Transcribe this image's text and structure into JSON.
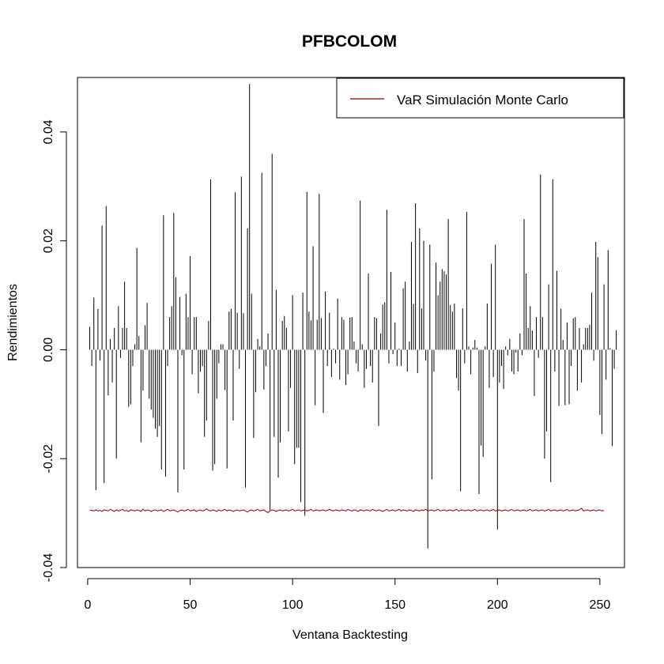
{
  "chart_data": {
    "type": "line",
    "title": "PFBCOLOM",
    "xlabel": "Ventana Backtesting",
    "ylabel": "Rendimientos",
    "xlim": [
      -5,
      262
    ],
    "ylim": [
      -0.04,
      0.05
    ],
    "x_ticks": [
      0,
      50,
      100,
      150,
      200,
      250
    ],
    "x_tick_labels": [
      "0",
      "50",
      "100",
      "150",
      "200",
      "250"
    ],
    "y_ticks": [
      -0.04,
      -0.02,
      0.0,
      0.02,
      0.04
    ],
    "y_tick_labels": [
      "-0.04",
      "-0.02",
      "0.00",
      "0.02",
      "0.04"
    ],
    "grid": false,
    "legend": {
      "position": "top-right",
      "entries": [
        {
          "label": "VaR Simulación Monte Carlo",
          "color": "#8b0000"
        }
      ]
    },
    "colors": {
      "returns": "#000000",
      "var": "#8b0000"
    },
    "series": [
      {
        "type": "histogram-lines",
        "x_start": 1,
        "values": [
          0.0042,
          -0.003,
          0.0096,
          -0.0258,
          0.0075,
          -0.002,
          0.0228,
          -0.0245,
          0.0264,
          -0.0084,
          0.002,
          -0.006,
          0.004,
          -0.02,
          0.008,
          -0.0015,
          0.004,
          0.0125,
          0.004,
          -0.0105,
          -0.01,
          -0.003,
          0.001,
          0.0187,
          0.0025,
          -0.017,
          -0.0075,
          0.0045,
          0.0086,
          -0.009,
          -0.011,
          -0.0125,
          -0.0145,
          -0.016,
          -0.014,
          -0.022,
          0.0247,
          -0.0233,
          -0.003,
          0.006,
          0.008,
          0.0251,
          0.0133,
          -0.0262,
          0.0097,
          -0.001,
          -0.022,
          0.0103,
          0.006,
          0.0172,
          -0.0045,
          0.006,
          0.006,
          -0.008,
          -0.004,
          -0.003,
          -0.016,
          -0.013,
          0.0053,
          0.0313,
          -0.0222,
          -0.021,
          -0.009,
          -0.0025,
          0.001,
          0.001,
          -0.0074,
          -0.0218,
          0.007,
          0.0075,
          -0.013,
          0.0289,
          0.0068,
          -0.0035,
          0.0318,
          0.0067,
          -0.0253,
          0.0223,
          0.0488,
          0.0103,
          -0.0162,
          -0.0078,
          0.002,
          0.0006,
          0.0325,
          -0.0073,
          -0.003,
          0.003,
          -0.0295,
          0.036,
          -0.016,
          0.011,
          -0.0235,
          -0.017,
          0.0053,
          0.0062,
          0.004,
          -0.015,
          -0.007,
          0.01,
          -0.021,
          -0.018,
          -0.018,
          -0.028,
          0.0105,
          -0.0305,
          0.029,
          0.007,
          0.0054,
          0.019,
          -0.0102,
          0.0055,
          0.0286,
          0.0058,
          -0.0116,
          0.0107,
          -0.003,
          0.0068,
          -0.005,
          0.0002,
          -0.0025,
          0.0094,
          -0.0055,
          0.006,
          0.0055,
          -0.0065,
          -0.0045,
          0.0059,
          0.006,
          0.0015,
          -0.0025,
          -0.004,
          0.0274,
          0.001,
          -0.007,
          -0.0035,
          0.014,
          -0.003,
          -0.006,
          0.006,
          0.0058,
          -0.014,
          0.003,
          0.0083,
          0.0087,
          0.0257,
          -0.0025,
          0.0143,
          -0.0008,
          0.005,
          -0.003,
          0.0002,
          -0.003,
          0.0113,
          0.0125,
          -0.004,
          0.0015,
          0.0198,
          0.0084,
          0.0269,
          -0.0043,
          0.0223,
          0.0076,
          0.02,
          -0.002,
          -0.0365,
          0.0193,
          -0.0238,
          -0.004,
          0.016,
          0.01,
          0.0125,
          0.0148,
          0.0144,
          0.0138,
          0.024,
          0.0082,
          0.007,
          0.0085,
          -0.0052,
          -0.0075,
          -0.026,
          0.0076,
          -0.0025,
          0.0253,
          0.0006,
          -0.0045,
          0.0004,
          0.0018,
          0.0004,
          -0.0265,
          -0.0176,
          -0.0197,
          0.0006,
          0.0085,
          -0.007,
          0.0158,
          -0.005,
          0.0193,
          -0.033,
          -0.006,
          -0.003,
          -0.0072,
          0.0006,
          -0.001,
          0.002,
          -0.004,
          -0.0045,
          -0.0005,
          -0.004,
          0.003,
          -0.001,
          0.024,
          0.014,
          0.004,
          0.008,
          0.0035,
          -0.0085,
          0.006,
          -0.0015,
          0.0322,
          0.006,
          -0.02,
          -0.015,
          0.012,
          -0.0243,
          0.0313,
          -0.004,
          0.0145,
          -0.0103,
          0.0075,
          0.0018,
          -0.0102,
          0.005,
          -0.01,
          -0.003,
          0.0058,
          0.006,
          -0.0075,
          0.004,
          -0.006,
          0.001,
          0.004,
          0.004,
          0.0046,
          0.0105,
          -0.002,
          0.0198,
          0.017,
          -0.012,
          -0.0155,
          0.012,
          -0.0055,
          0.0183,
          0.0003,
          -0.0177,
          -0.0035,
          0.0036
        ]
      },
      {
        "name": "VaR Simulación Monte Carlo",
        "type": "line",
        "x_start": 1,
        "values": [
          -0.0295,
          -0.0295,
          -0.0296,
          -0.0294,
          -0.0296,
          -0.0295,
          -0.0297,
          -0.0294,
          -0.0295,
          -0.0296,
          -0.0293,
          -0.0295,
          -0.0297,
          -0.0294,
          -0.0296,
          -0.0295,
          -0.0293,
          -0.0296,
          -0.0295,
          -0.0297,
          -0.0294,
          -0.0295,
          -0.0296,
          -0.0294,
          -0.0295,
          -0.0297,
          -0.0293,
          -0.0296,
          -0.0294,
          -0.0295,
          -0.0297,
          -0.0295,
          -0.0294,
          -0.0296,
          -0.0295,
          -0.0294,
          -0.0297,
          -0.0295,
          -0.0293,
          -0.0296,
          -0.0295,
          -0.0294,
          -0.0296,
          -0.0298,
          -0.0295,
          -0.0294,
          -0.0296,
          -0.0295,
          -0.0293,
          -0.0296,
          -0.0295,
          -0.0294,
          -0.0297,
          -0.0295,
          -0.0294,
          -0.0296,
          -0.0295,
          -0.0292,
          -0.0295,
          -0.0296,
          -0.0294,
          -0.0295,
          -0.0297,
          -0.0294,
          -0.0296,
          -0.0295,
          -0.0293,
          -0.0296,
          -0.0294,
          -0.0295,
          -0.0297,
          -0.0295,
          -0.0294,
          -0.0296,
          -0.0295,
          -0.0294,
          -0.0296,
          -0.0298,
          -0.0295,
          -0.0294,
          -0.0296,
          -0.0295,
          -0.0293,
          -0.0296,
          -0.0295,
          -0.0294,
          -0.0297,
          -0.0299,
          -0.0296,
          -0.0294,
          -0.0295,
          -0.0297,
          -0.0295,
          -0.0294,
          -0.0296,
          -0.0295,
          -0.0294,
          -0.0296,
          -0.0295,
          -0.0293,
          -0.0296,
          -0.0295,
          -0.0294,
          -0.0296,
          -0.0295,
          -0.0294,
          -0.0296,
          -0.0295,
          -0.0293,
          -0.0296,
          -0.0295,
          -0.0294,
          -0.0296,
          -0.0295,
          -0.0294,
          -0.0296,
          -0.0295,
          -0.0293,
          -0.0295,
          -0.0296,
          -0.0294,
          -0.0295,
          -0.0296,
          -0.0294,
          -0.0295,
          -0.0296,
          -0.0293,
          -0.0295,
          -0.0296,
          -0.0294,
          -0.0295,
          -0.0297,
          -0.0294,
          -0.0295,
          -0.0296,
          -0.0294,
          -0.0295,
          -0.0296,
          -0.0293,
          -0.0295,
          -0.0296,
          -0.0294,
          -0.0295,
          -0.0297,
          -0.0295,
          -0.0293,
          -0.0296,
          -0.0295,
          -0.0294,
          -0.0296,
          -0.0295,
          -0.0293,
          -0.0296,
          -0.0294,
          -0.0295,
          -0.0296,
          -0.0294,
          -0.0295,
          -0.0297,
          -0.0294,
          -0.0295,
          -0.0296,
          -0.0294,
          -0.0295,
          -0.0293,
          -0.0296,
          -0.0295,
          -0.0294,
          -0.0296,
          -0.0295,
          -0.0293,
          -0.0296,
          -0.0295,
          -0.0294,
          -0.0296,
          -0.0295,
          -0.0294,
          -0.0296,
          -0.0295,
          -0.0293,
          -0.0296,
          -0.0295,
          -0.0294,
          -0.0296,
          -0.0295,
          -0.0294,
          -0.0296,
          -0.0295,
          -0.0293,
          -0.0296,
          -0.0295,
          -0.0294,
          -0.0296,
          -0.0295,
          -0.0294,
          -0.0296,
          -0.0295,
          -0.0293,
          -0.0296,
          -0.0295,
          -0.0294,
          -0.0296,
          -0.0295,
          -0.0294,
          -0.0296,
          -0.0295,
          -0.0293,
          -0.0296,
          -0.0295,
          -0.0294,
          -0.0296,
          -0.0295,
          -0.0294,
          -0.0296,
          -0.0295,
          -0.0293,
          -0.0296,
          -0.0295,
          -0.0294,
          -0.0296,
          -0.0295,
          -0.0294,
          -0.0296,
          -0.0295,
          -0.0293,
          -0.0296,
          -0.0295,
          -0.0294,
          -0.0296,
          -0.0295,
          -0.0294,
          -0.0296,
          -0.0295,
          -0.0293,
          -0.0296,
          -0.0295,
          -0.0294,
          -0.0296,
          -0.0295,
          -0.0294,
          -0.0291,
          -0.0296,
          -0.0295,
          -0.0294,
          -0.0296,
          -0.0295,
          -0.0294,
          -0.0296,
          -0.0295,
          -0.0294,
          -0.0296,
          -0.0295
        ]
      }
    ]
  }
}
